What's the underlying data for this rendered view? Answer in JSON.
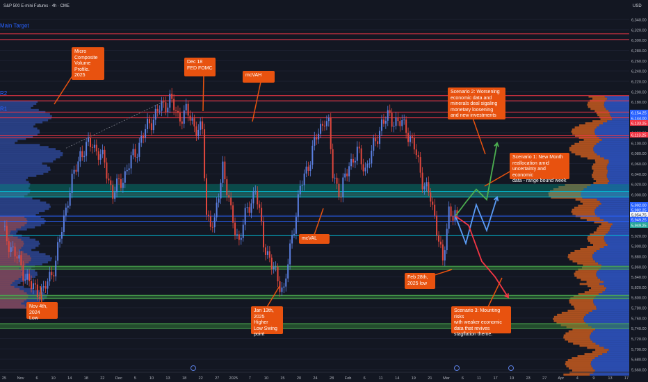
{
  "header": {
    "symbol_title": "S&P 500 E-mini Futures · 4h · CME",
    "currency": "USD"
  },
  "chart_data": {
    "type": "candlestick",
    "title": "S&P 500 E-mini Futures · 4h · CME",
    "ylim": [
      5645,
      6360
    ],
    "y_ticks": [
      6340,
      6320,
      6300,
      6280,
      6260,
      6240,
      6220,
      6200,
      6180,
      6160,
      6140,
      6120,
      6100,
      6080,
      6060,
      6040,
      6020,
      6000,
      5980,
      5960,
      5940,
      5920,
      5900,
      5880,
      5860,
      5840,
      5820,
      5800,
      5780,
      5760,
      5740,
      5720,
      5700,
      5680,
      5660
    ],
    "x_ticks": [
      "25",
      "Nov",
      "6",
      "10",
      "14",
      "18",
      "22",
      "Dec",
      "5",
      "10",
      "13",
      "18",
      "22",
      "27",
      "2025",
      "7",
      "10",
      "15",
      "20",
      "24",
      "28",
      "Feb",
      "6",
      "11",
      "14",
      "19",
      "21",
      "Mar",
      "6",
      "11",
      "17",
      "19",
      "23",
      "27",
      "Apr",
      "4",
      "9",
      "13",
      "17"
    ],
    "close_price_markers": [
      {
        "label": "6,154.25",
        "color": "#2962ff"
      },
      {
        "label": "6,144.00",
        "color": "#2962ff"
      },
      {
        "label": "6,133.25",
        "color": "#f23645"
      },
      {
        "label": "6,113.25",
        "color": "#f23645"
      },
      {
        "label": "5,992.00",
        "color": "#2962ff"
      },
      {
        "label": "5,982.25",
        "color": "#2962ff"
      },
      {
        "label": "5,954.75",
        "color": "#f0f3fa"
      },
      {
        "label": "5,949.25",
        "color": "#2962ff"
      },
      {
        "label": "5,949.25",
        "color": "#26a69a"
      }
    ],
    "levels": [
      {
        "price": 6312,
        "color": "#f23645"
      },
      {
        "price": 6301,
        "color": "#f23645"
      },
      {
        "price": 6192,
        "color": "#f23645"
      },
      {
        "price": 6182,
        "color": "#f23645"
      },
      {
        "price": 6160,
        "color": "#f23645"
      },
      {
        "price": 6149,
        "color": "#f23645"
      },
      {
        "price": 6114,
        "color": "#f23645"
      },
      {
        "price": 6110,
        "color": "#f23645"
      },
      {
        "price": 6006,
        "color": "#00bcd4"
      },
      {
        "price": 5995,
        "color": "#00bcd4"
      },
      {
        "price": 5958,
        "color": "#2962ff"
      },
      {
        "price": 5948,
        "color": "#2962ff"
      },
      {
        "price": 5920,
        "color": "#00bcd4"
      },
      {
        "price": 5860,
        "color": "#4caf50"
      },
      {
        "price": 5855,
        "color": "#4caf50"
      },
      {
        "price": 5804,
        "color": "#4caf50"
      },
      {
        "price": 5798,
        "color": "#4caf50"
      },
      {
        "price": 5749,
        "color": "#4caf50"
      },
      {
        "price": 5740,
        "color": "#4caf50"
      }
    ],
    "zones": [
      {
        "from": 6006,
        "to": 6020,
        "color": "#00897b"
      },
      {
        "from": 5995,
        "to": 6006,
        "color": "#26a69a"
      },
      {
        "from": 5855,
        "to": 5862,
        "color": "#388e3c"
      },
      {
        "from": 5798,
        "to": 5804,
        "color": "#388e3c"
      },
      {
        "from": 5740,
        "to": 5749,
        "color": "#388e3c"
      }
    ],
    "level_labels": [
      {
        "text": "Main Target",
        "price": 6322,
        "color": "#2962ff"
      },
      {
        "text": "R2",
        "price": 6190,
        "color": "#2962ff"
      },
      {
        "text": "R1",
        "price": 6160,
        "color": "#2962ff"
      }
    ],
    "annotations": [
      {
        "id": "micro-composite-callout",
        "text": "Micro\nComposite\nVolume\nProfile.\n2025"
      },
      {
        "id": "dec18-fomc-callout",
        "text": "Dec 18\nFED FOMC"
      },
      {
        "id": "mcvah-callout",
        "text": "mcVAH"
      },
      {
        "id": "mcval-callout",
        "text": "mcVAL"
      },
      {
        "id": "nov4-low-callout",
        "text": "Nov 4th, 2024\nLow"
      },
      {
        "id": "jan13-callout",
        "text": "Jan 13th,\n2025 Higher\nLow Swing\npoint"
      },
      {
        "id": "feb28-callout",
        "text": "Feb 28th,\n2025 low"
      },
      {
        "id": "scenario2-callout",
        "text": "Scenario 2: Worsening\neconomic data and\nminerals deal sigaling\nmonetary loosening\nand new investments"
      },
      {
        "id": "scenario1-callout",
        "text": "Scenario 1: New Month\nreallocation amid\nuncertainty  and economic\ndata - range bound week"
      },
      {
        "id": "scenario3-callout",
        "text": "Scenario 3: Mounting risks\nwith weaker economic\ndata that revives\nstagflation theme."
      }
    ],
    "price_path": [
      {
        "i": 0,
        "p": 5930
      },
      {
        "i": 14,
        "p": 5820
      },
      {
        "i": 20,
        "p": 5810
      },
      {
        "i": 26,
        "p": 5870
      },
      {
        "i": 32,
        "p": 5995
      },
      {
        "i": 38,
        "p": 6080
      },
      {
        "i": 44,
        "p": 6100
      },
      {
        "i": 50,
        "p": 6060
      },
      {
        "i": 54,
        "p": 6000
      },
      {
        "i": 60,
        "p": 6040
      },
      {
        "i": 66,
        "p": 6090
      },
      {
        "i": 72,
        "p": 6140
      },
      {
        "i": 78,
        "p": 6170
      },
      {
        "i": 82,
        "p": 6185
      },
      {
        "i": 86,
        "p": 6150
      },
      {
        "i": 90,
        "p": 6160
      },
      {
        "i": 94,
        "p": 6135
      },
      {
        "i": 98,
        "p": 6120
      },
      {
        "i": 100,
        "p": 5960
      },
      {
        "i": 104,
        "p": 5940
      },
      {
        "i": 108,
        "p": 6060
      },
      {
        "i": 112,
        "p": 5960
      },
      {
        "i": 116,
        "p": 5910
      },
      {
        "i": 120,
        "p": 5970
      },
      {
        "i": 124,
        "p": 6010
      },
      {
        "i": 128,
        "p": 5910
      },
      {
        "i": 132,
        "p": 5860
      },
      {
        "i": 136,
        "p": 5830
      },
      {
        "i": 138,
        "p": 5810
      },
      {
        "i": 142,
        "p": 5920
      },
      {
        "i": 146,
        "p": 6010
      },
      {
        "i": 150,
        "p": 6060
      },
      {
        "i": 154,
        "p": 6110
      },
      {
        "i": 158,
        "p": 6150
      },
      {
        "i": 160,
        "p": 6130
      },
      {
        "i": 162,
        "p": 6040
      },
      {
        "i": 166,
        "p": 6000
      },
      {
        "i": 170,
        "p": 6060
      },
      {
        "i": 174,
        "p": 6080
      },
      {
        "i": 178,
        "p": 6050
      },
      {
        "i": 182,
        "p": 6090
      },
      {
        "i": 186,
        "p": 6140
      },
      {
        "i": 190,
        "p": 6150
      },
      {
        "i": 194,
        "p": 6140
      },
      {
        "i": 198,
        "p": 6130
      },
      {
        "i": 202,
        "p": 6090
      },
      {
        "i": 206,
        "p": 6030
      },
      {
        "i": 210,
        "p": 5990
      },
      {
        "i": 214,
        "p": 5920
      },
      {
        "i": 216,
        "p": 5860
      },
      {
        "i": 219,
        "p": 5970
      },
      {
        "i": 223,
        "p": 5960
      }
    ],
    "scenarios": [
      {
        "name": "Scenario 1",
        "color": "#5b9cf5",
        "path": [
          5958,
          5905,
          5980,
          5930,
          5995
        ]
      },
      {
        "name": "Scenario 2",
        "color": "#4caf50",
        "path": [
          5958,
          5985,
          6010,
          5990,
          6100
        ]
      },
      {
        "name": "Scenario 3",
        "color": "#f23645",
        "path": [
          5958,
          5940,
          5870,
          5840,
          5800
        ]
      }
    ]
  }
}
